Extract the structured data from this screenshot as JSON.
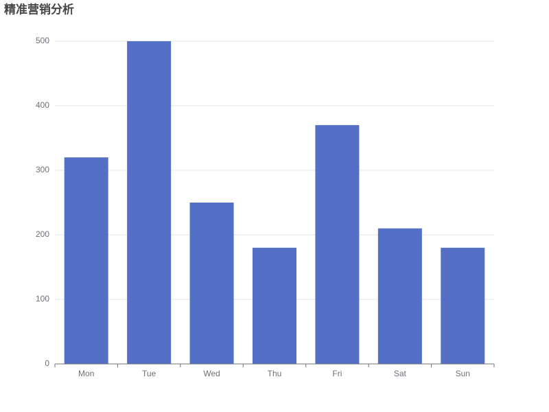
{
  "chart_data": {
    "type": "bar",
    "title": "精准营销分析",
    "categories": [
      "Mon",
      "Tue",
      "Wed",
      "Thu",
      "Fri",
      "Sat",
      "Sun"
    ],
    "values": [
      320,
      500,
      250,
      180,
      370,
      210,
      180
    ],
    "color": "#5470c6",
    "ylim": [
      0,
      500
    ],
    "yticks": [
      0,
      100,
      200,
      300,
      400,
      500
    ],
    "grid": true
  }
}
